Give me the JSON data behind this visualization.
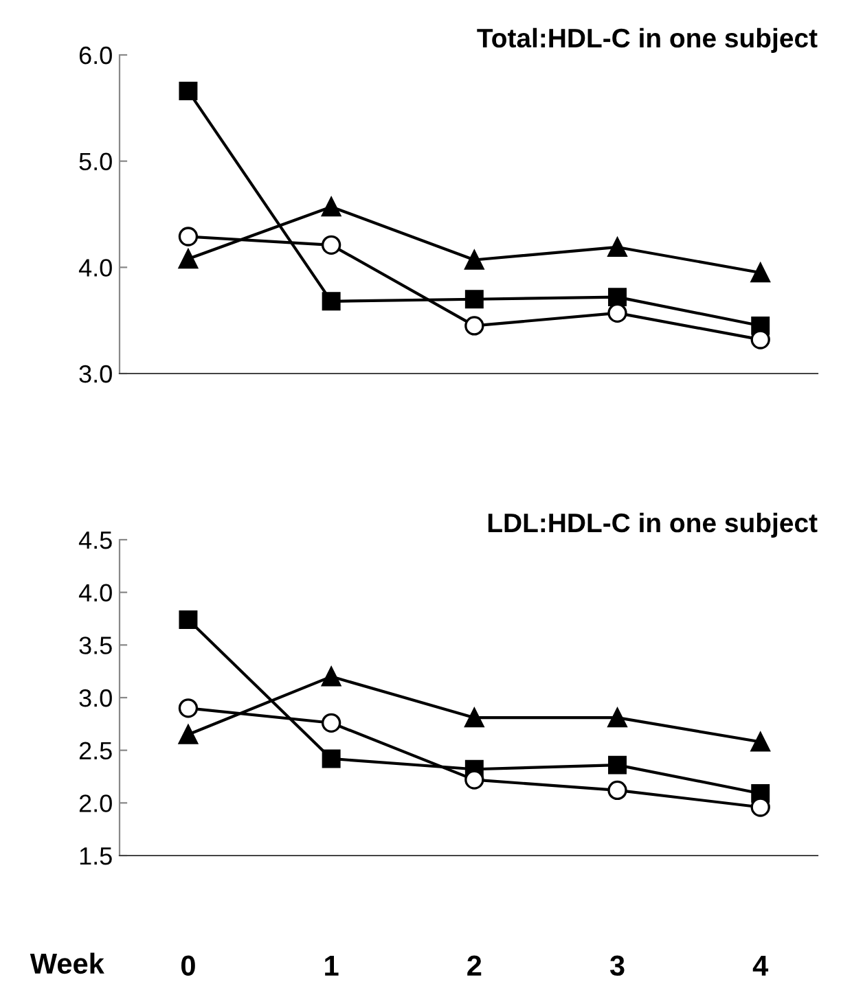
{
  "chart_data": [
    {
      "type": "line",
      "title": "Total:HDL-C in one subject",
      "categories": [
        "0",
        "1",
        "2",
        "3",
        "4"
      ],
      "series": [
        {
          "color": "#000000",
          "marker": "square",
          "values": [
            5.66,
            3.68,
            3.7,
            3.72,
            3.45
          ]
        },
        {
          "color": "#000000",
          "marker": "circle",
          "values": [
            4.29,
            4.21,
            3.45,
            3.57,
            3.32
          ]
        },
        {
          "color": "#000000",
          "marker": "triangle",
          "values": [
            4.08,
            4.57,
            4.07,
            4.19,
            3.95
          ]
        }
      ],
      "ylim": [
        3.0,
        6.0
      ],
      "yticks": [
        {
          "value": 3.0,
          "label": "3.0"
        },
        {
          "value": 4.0,
          "label": "4.0"
        },
        {
          "value": 5.0,
          "label": "5.0"
        },
        {
          "value": 6.0,
          "label": "6.0"
        }
      ],
      "tick_labels": "y",
      "grid": false,
      "legend": false,
      "line_style": "solid"
    },
    {
      "type": "line",
      "title": "LDL:HDL-C in one subject",
      "xlabel": "Week",
      "categories": [
        "0",
        "1",
        "2",
        "3",
        "4"
      ],
      "series": [
        {
          "color": "#000000",
          "marker": "square",
          "values": [
            3.74,
            2.42,
            2.32,
            2.36,
            2.09
          ]
        },
        {
          "color": "#000000",
          "marker": "circle",
          "values": [
            2.9,
            2.76,
            2.22,
            2.12,
            1.96
          ]
        },
        {
          "color": "#000000",
          "marker": "triangle",
          "values": [
            2.65,
            3.2,
            2.81,
            2.81,
            2.58
          ]
        }
      ],
      "ylim": [
        1.5,
        4.5
      ],
      "yticks": [
        {
          "value": 1.5,
          "label": "1.5"
        },
        {
          "value": 2.0,
          "label": "2.0"
        },
        {
          "value": 2.5,
          "label": "2.5"
        },
        {
          "value": 3.0,
          "label": "3.0"
        },
        {
          "value": 3.5,
          "label": "3.5"
        },
        {
          "value": 4.0,
          "label": "4.0"
        },
        {
          "value": 4.5,
          "label": "4.5"
        }
      ],
      "grid": false,
      "legend": false,
      "line_style": "solid"
    }
  ]
}
